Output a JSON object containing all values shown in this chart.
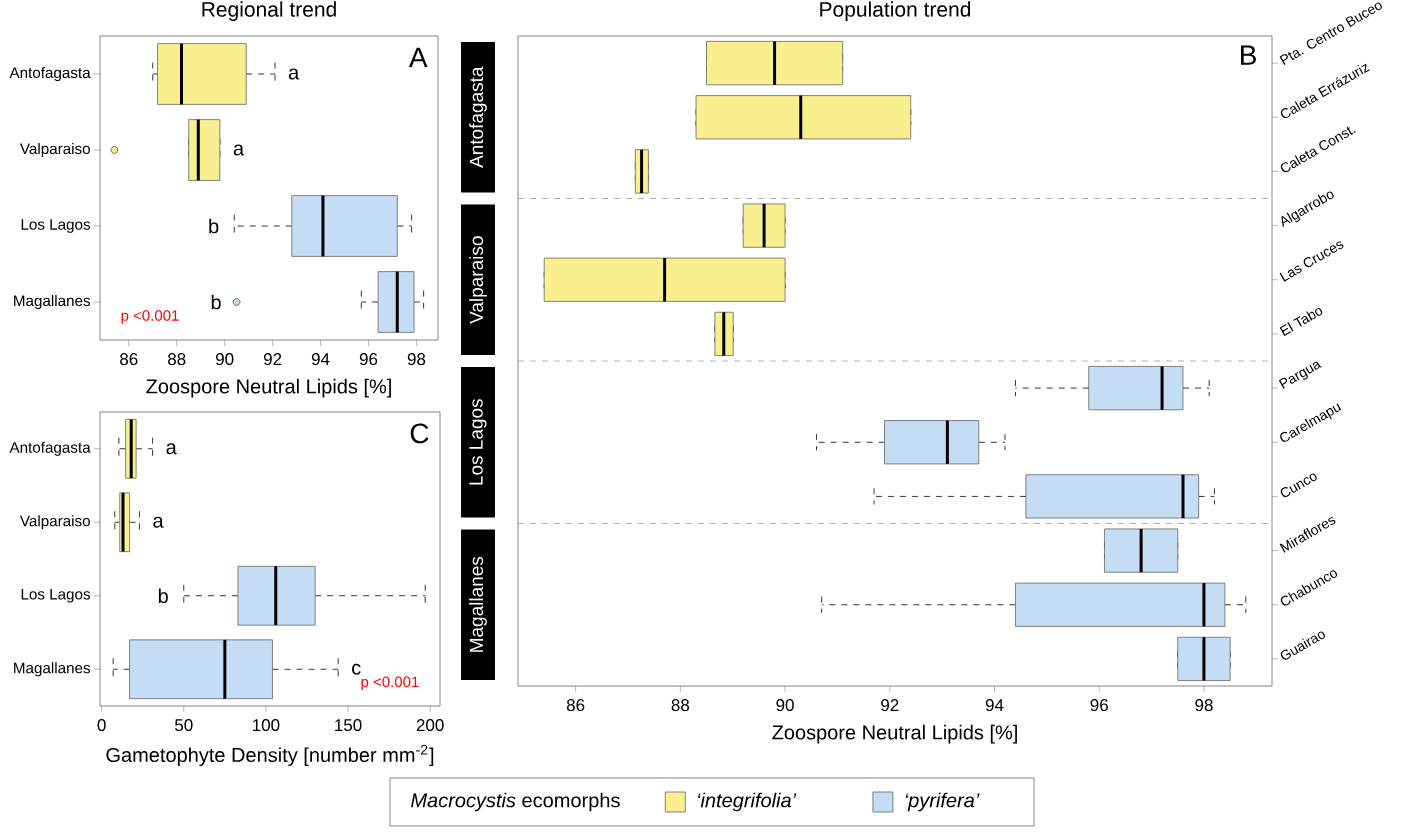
{
  "chart_data": [
    {
      "type": "box",
      "title": "Regional trend",
      "xlabel": "Zoospore Neutral Lipids [%]",
      "orientation": "horizontal",
      "categories": [
        "Antofagasta",
        "Valparaiso",
        "Los Lagos",
        "Magallanes"
      ],
      "boxes": [
        {
          "low": 87.0,
          "q1": 87.2,
          "median": 88.2,
          "q3": 90.9,
          "high": 92.1
        },
        {
          "low": 88.5,
          "q1": 88.5,
          "median": 88.9,
          "q3": 89.8,
          "high": 89.8,
          "outliers": [
            85.4
          ]
        },
        {
          "low": 90.4,
          "q1": 92.8,
          "median": 94.1,
          "q3": 97.2,
          "high": 97.8
        },
        {
          "low": 95.7,
          "q1": 96.4,
          "median": 97.2,
          "q3": 97.9,
          "high": 98.3,
          "outliers": [
            90.5
          ]
        }
      ],
      "colors": [
        "#f9ef8f",
        "#f9ef8f",
        "#c5dcf5",
        "#c5dcf5"
      ],
      "xlim": [
        84.8,
        98.9
      ],
      "xticks": [
        86,
        88,
        90,
        92,
        94,
        96,
        98
      ],
      "annotations": [
        "A",
        "a",
        "a",
        "b",
        "b",
        "p <0.001"
      ]
    },
    {
      "type": "box",
      "title": "Population trend",
      "ylabel": "Antofagasta",
      "orientation": "horizontal",
      "categories": [
        "Pta. Centro Buceo",
        "Caleta Errázuriz",
        "Caleta Const."
      ],
      "series": [
        {
          "name": "‘integrifolia’",
          "color": "#f9ef8f",
          "boxes": [
            {
              "low": 88.5,
              "q1": 88.5,
              "median": 89.8,
              "q3": 91.1,
              "high": 91.1
            },
            {
              "low": 88.3,
              "q1": 88.3,
              "median": 90.3,
              "q3": 92.4,
              "high": 92.4
            },
            {
              "low": 87.14,
              "q1": 87.14,
              "median": 87.26,
              "q3": 87.39,
              "high": 87.39
            }
          ]
        }
      ],
      "xlim": [
        84.9,
        99.3
      ],
      "xticks": [
        86,
        88,
        90,
        92,
        94,
        96,
        98
      ],
      "tick_labels": "y",
      "legend": "bottom",
      "legend_title": "*Macrocystis* ecomorphs",
      "annotations": [
        "B"
      ]
    },
    {
      "type": "box",
      "ylabel": "Valparaiso",
      "orientation": "horizontal",
      "categories": [
        "Algarrobo",
        "Las Cruces",
        "El Tabo"
      ],
      "series": [
        {
          "color": "#f9ef8f",
          "boxes": [
            {
              "low": 89.2,
              "q1": 89.2,
              "median": 89.6,
              "q3": 90.0,
              "high": 90.0
            },
            {
              "low": 85.4,
              "q1": 85.4,
              "median": 87.7,
              "q3": 90.0,
              "high": 90.0
            },
            {
              "low": 88.66,
              "q1": 88.66,
              "median": 88.83,
              "q3": 89.01,
              "high": 89.01
            }
          ]
        }
      ],
      "xlim": [
        84.9,
        99.3
      ],
      "xticks": [
        86,
        88,
        90,
        92,
        94,
        96,
        98
      ],
      "tick_labels": "y"
    },
    {
      "type": "box",
      "ylabel": "Los Lagos",
      "orientation": "horizontal",
      "categories": [
        "Pargua",
        "Carelmapu",
        "Cunco"
      ],
      "series": [
        {
          "name": "‘pyrifera’",
          "color": "#c5dcf5",
          "boxes": [
            {
              "low": 94.4,
              "q1": 95.8,
              "median": 97.2,
              "q3": 97.6,
              "high": 98.1
            },
            {
              "low": 90.6,
              "q1": 91.9,
              "median": 93.1,
              "q3": 93.7,
              "high": 94.2
            },
            {
              "low": 91.7,
              "q1": 94.6,
              "median": 97.6,
              "q3": 97.9,
              "high": 98.2
            }
          ]
        }
      ],
      "xlim": [
        84.9,
        99.3
      ],
      "xticks": [
        86,
        88,
        90,
        92,
        94,
        96,
        98
      ],
      "tick_labels": "y",
      "legend": "bottom"
    },
    {
      "type": "box",
      "ylabel": "Magallanes",
      "xlabel": "Zoospore Neutral Lipids [%]",
      "orientation": "horizontal",
      "categories": [
        "Miraflores",
        "Chabunco",
        "Guairao"
      ],
      "series": [
        {
          "color": "#c5dcf5",
          "boxes": [
            {
              "low": 96.1,
              "q1": 96.1,
              "median": 96.8,
              "q3": 97.5,
              "high": 97.5
            },
            {
              "low": 90.7,
              "q1": 94.4,
              "median": 98.0,
              "q3": 98.4,
              "high": 98.8
            },
            {
              "low": 97.5,
              "q1": 97.5,
              "median": 98.0,
              "q3": 98.5,
              "high": 98.5
            }
          ]
        }
      ],
      "xlim": [
        84.9,
        99.3
      ],
      "xticks": [
        86,
        88,
        90,
        92,
        94,
        96,
        98
      ]
    },
    {
      "type": "box",
      "xlabel": "Gametophyte Density [number mm$^{-2}$]",
      "orientation": "horizontal",
      "categories": [
        "Antofagasta",
        "Valparaiso",
        "Los Lagos",
        "Magallanes"
      ],
      "boxes": [
        {
          "low": 10.5,
          "q1": 14.6,
          "median": 18,
          "q3": 21,
          "high": 31
        },
        {
          "low": 8,
          "q1": 11,
          "median": 13,
          "q3": 17,
          "high": 23
        },
        {
          "low": 50,
          "q1": 83,
          "median": 106,
          "q3": 130,
          "high": 197
        },
        {
          "low": 7,
          "q1": 17,
          "median": 75,
          "q3": 104,
          "high": 144
        }
      ],
      "colors": [
        "#f9ef8f",
        "#f9ef8f",
        "#c5dcf5",
        "#c5dcf5"
      ],
      "xlim": [
        -1,
        206
      ],
      "xticks": [
        0,
        50,
        100,
        150,
        200
      ],
      "annotations": [
        "C",
        "a",
        "a",
        "b",
        "c",
        "p <0.001"
      ]
    }
  ]
}
